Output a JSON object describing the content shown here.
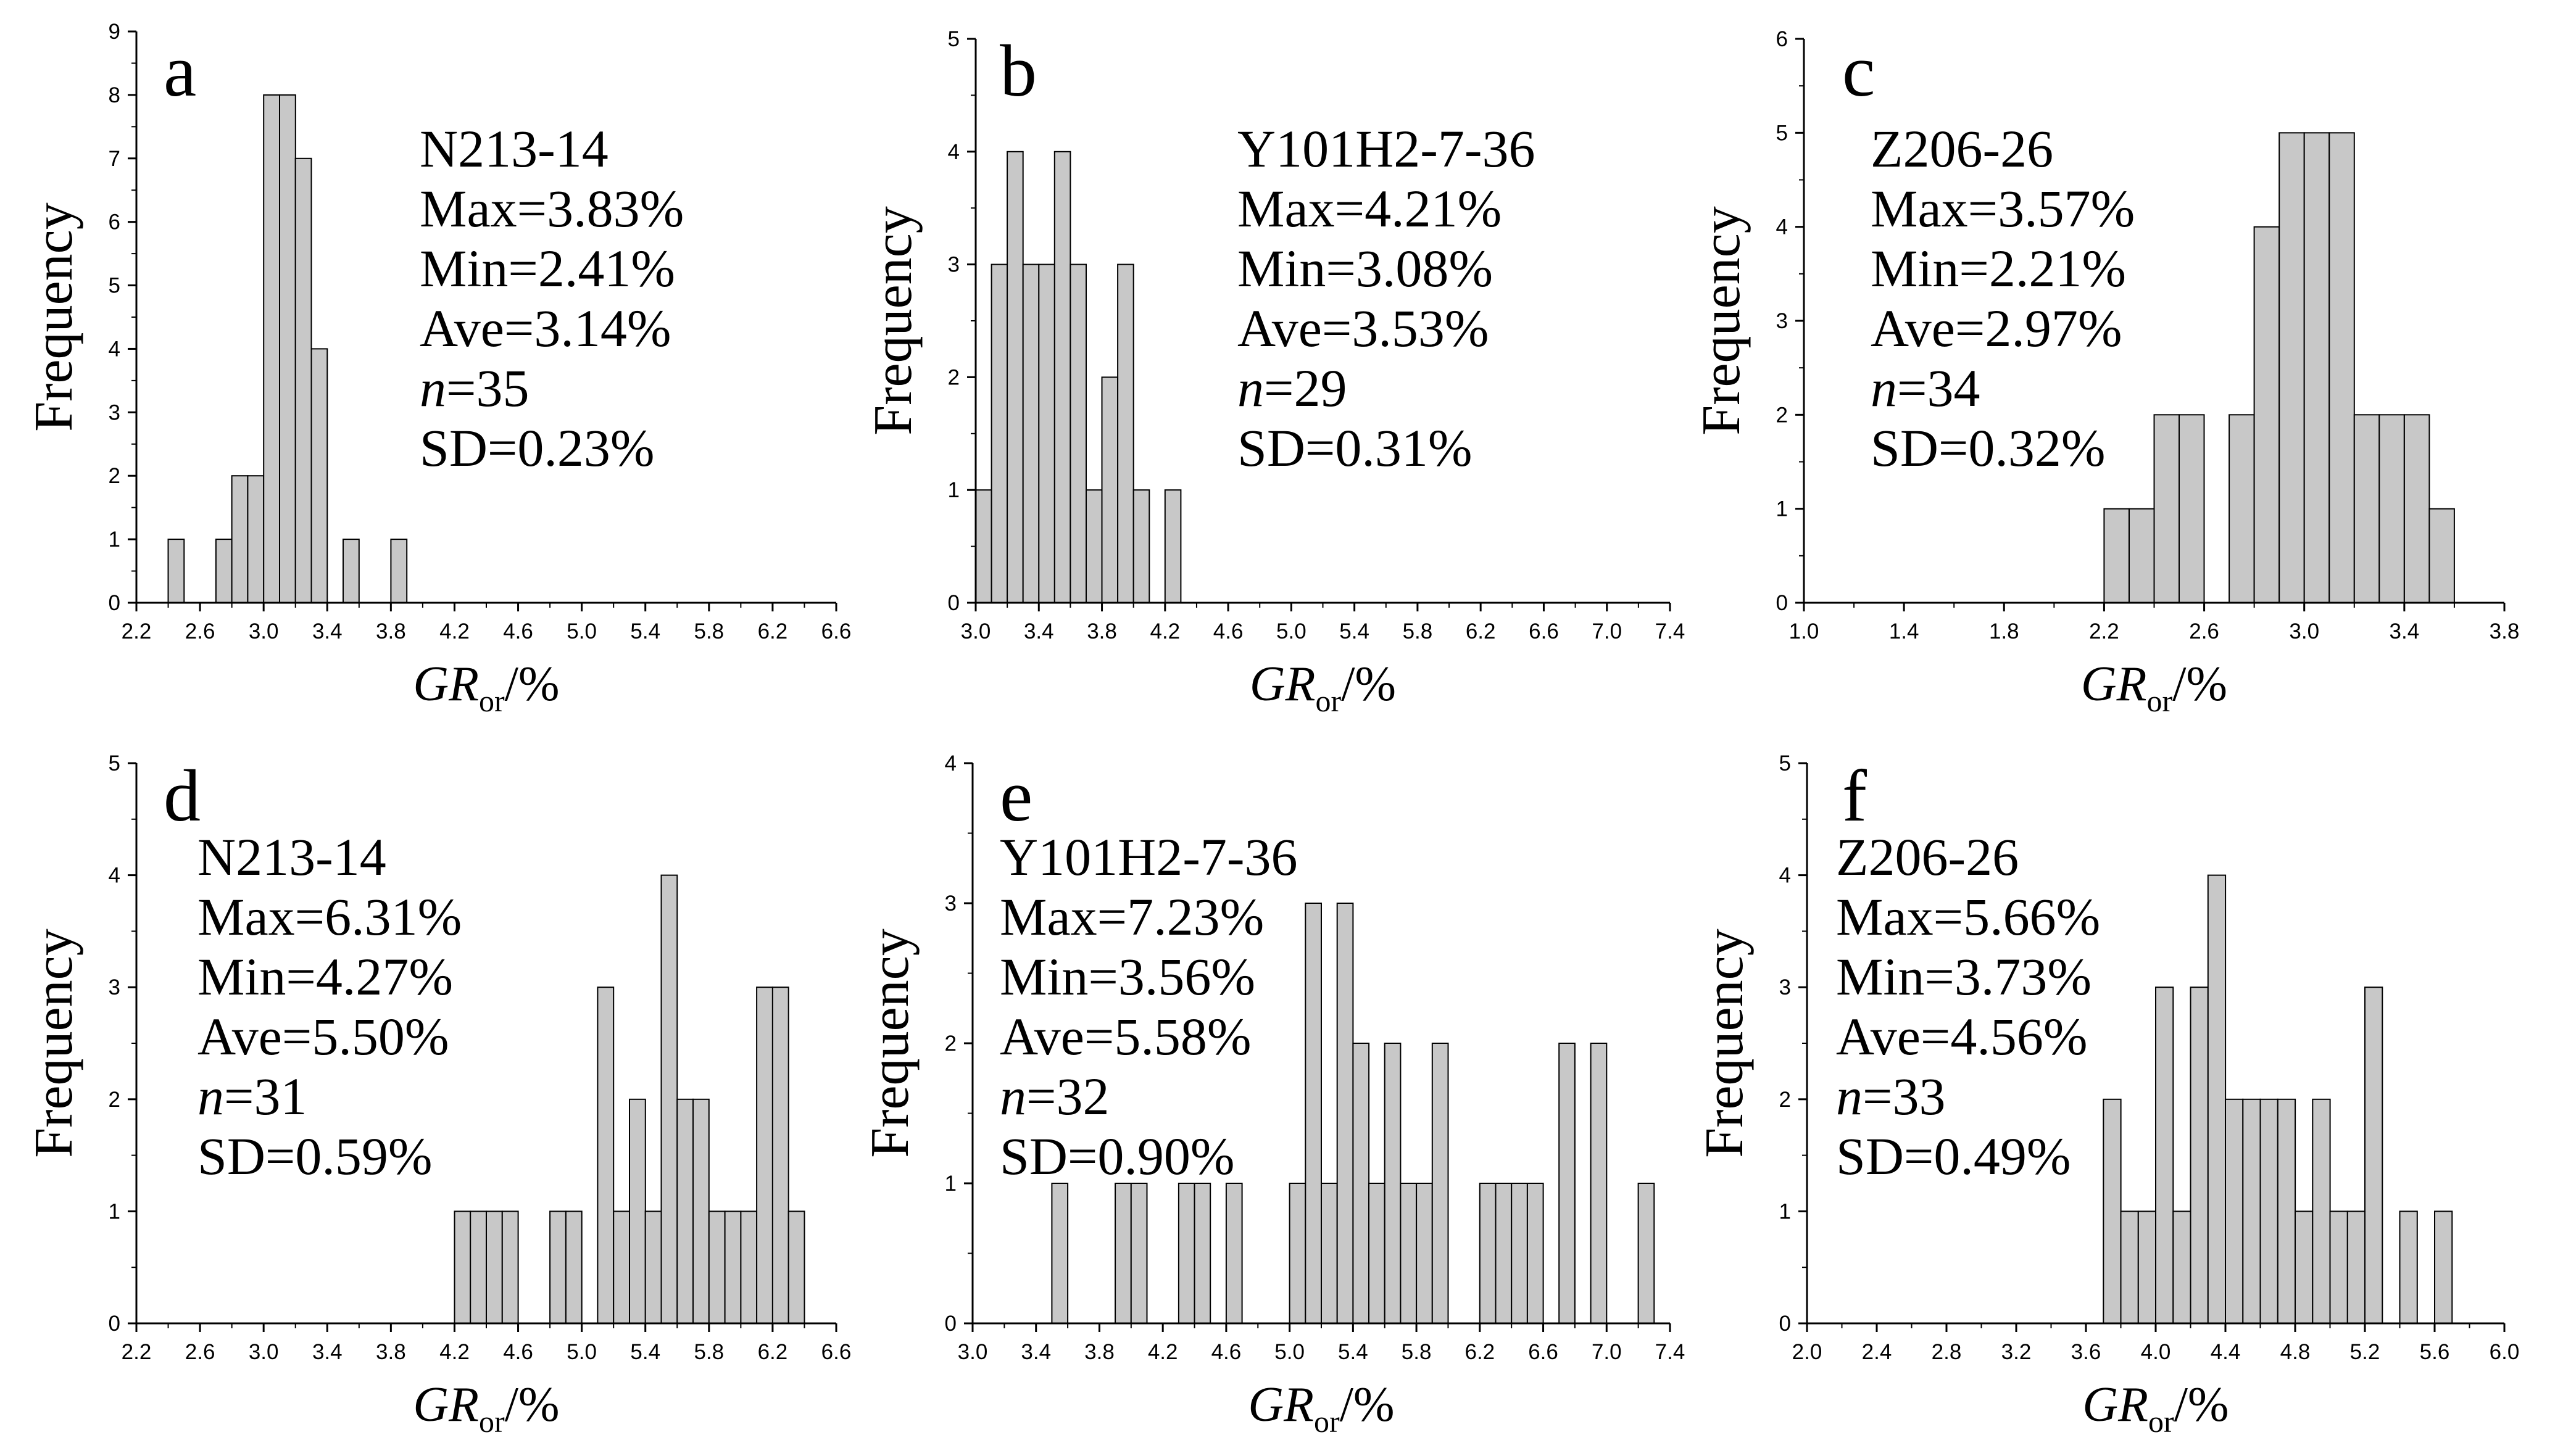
{
  "colors": {
    "bar_fill": "#c8c8c8",
    "bar_stroke": "#000000",
    "axis": "#000000",
    "background": "#ffffff"
  },
  "chart_data": [
    {
      "type": "bar",
      "panel": "a",
      "ylabel": "Frequency",
      "xlabel_main": "GR",
      "xlabel_sub": "or",
      "xlabel_unit": "/%",
      "bin_width": 0.1,
      "xlim": [
        2.2,
        6.6
      ],
      "ylim": [
        0,
        9
      ],
      "xticks": [
        "2.2",
        "2.6",
        "3.0",
        "3.4",
        "3.8",
        "4.2",
        "4.6",
        "5.0",
        "5.4",
        "5.8",
        "6.2",
        "6.6"
      ],
      "yticks": [
        "0",
        "1",
        "2",
        "3",
        "4",
        "5",
        "6",
        "7",
        "8",
        "9"
      ],
      "bins": [
        {
          "x": 2.4,
          "count": 1
        },
        {
          "x": 2.7,
          "count": 1
        },
        {
          "x": 2.8,
          "count": 2
        },
        {
          "x": 2.9,
          "count": 2
        },
        {
          "x": 3.0,
          "count": 8
        },
        {
          "x": 3.1,
          "count": 8
        },
        {
          "x": 3.2,
          "count": 7
        },
        {
          "x": 3.3,
          "count": 4
        },
        {
          "x": 3.5,
          "count": 1
        },
        {
          "x": 3.8,
          "count": 1
        }
      ],
      "stats": {
        "sample": "N213-14",
        "max": "Max=3.83%",
        "min": "Min=2.41%",
        "ave": "Ave=3.14%",
        "n_prefix": "n",
        "n_value": "=35",
        "sd": "SD=0.23%"
      },
      "legend_position": "upper-middle"
    },
    {
      "type": "bar",
      "panel": "b",
      "ylabel": "Frequency",
      "xlabel_main": "GR",
      "xlabel_sub": "or",
      "xlabel_unit": "/%",
      "bin_width": 0.1,
      "xlim": [
        3.0,
        7.4
      ],
      "ylim": [
        0,
        5
      ],
      "xticks": [
        "3.0",
        "3.4",
        "3.8",
        "4.2",
        "4.6",
        "5.0",
        "5.4",
        "5.8",
        "6.2",
        "6.6",
        "7.0",
        "7.4"
      ],
      "yticks": [
        "0",
        "1",
        "2",
        "3",
        "4",
        "5"
      ],
      "bins": [
        {
          "x": 3.0,
          "count": 1
        },
        {
          "x": 3.1,
          "count": 3
        },
        {
          "x": 3.2,
          "count": 4
        },
        {
          "x": 3.3,
          "count": 3
        },
        {
          "x": 3.4,
          "count": 3
        },
        {
          "x": 3.5,
          "count": 4
        },
        {
          "x": 3.6,
          "count": 3
        },
        {
          "x": 3.7,
          "count": 1
        },
        {
          "x": 3.8,
          "count": 2
        },
        {
          "x": 3.9,
          "count": 3
        },
        {
          "x": 4.0,
          "count": 1
        },
        {
          "x": 4.2,
          "count": 1
        }
      ],
      "stats": {
        "sample": "Y101H2-7-36",
        "max": "Max=4.21%",
        "min": "Min=3.08%",
        "ave": "Ave=3.53%",
        "n_prefix": "n",
        "n_value": "=29",
        "sd": "SD=0.31%"
      },
      "legend_position": "upper-middle"
    },
    {
      "type": "bar",
      "panel": "c",
      "ylabel": "Frequency",
      "xlabel_main": "GR",
      "xlabel_sub": "or",
      "xlabel_unit": "/%",
      "bin_width": 0.1,
      "xlim": [
        1.0,
        3.8
      ],
      "ylim": [
        0,
        6
      ],
      "xticks": [
        "1.0",
        "1.4",
        "1.8",
        "2.2",
        "2.6",
        "3.0",
        "3.4",
        "3.8"
      ],
      "yticks": [
        "0",
        "1",
        "2",
        "3",
        "4",
        "5",
        "6"
      ],
      "bins": [
        {
          "x": 2.2,
          "count": 1
        },
        {
          "x": 2.3,
          "count": 1
        },
        {
          "x": 2.4,
          "count": 2
        },
        {
          "x": 2.5,
          "count": 2
        },
        {
          "x": 2.7,
          "count": 2
        },
        {
          "x": 2.8,
          "count": 4
        },
        {
          "x": 2.9,
          "count": 5
        },
        {
          "x": 3.0,
          "count": 5
        },
        {
          "x": 3.1,
          "count": 5
        },
        {
          "x": 3.2,
          "count": 2
        },
        {
          "x": 3.3,
          "count": 2
        },
        {
          "x": 3.4,
          "count": 2
        },
        {
          "x": 3.5,
          "count": 1
        }
      ],
      "stats": {
        "sample": "Z206-26",
        "max": "Max=3.57%",
        "min": "Min=2.21%",
        "ave": "Ave=2.97%",
        "n_prefix": "n",
        "n_value": "=34",
        "sd": "SD=0.32%"
      },
      "legend_position": "upper-left"
    },
    {
      "type": "bar",
      "panel": "d",
      "ylabel": "Frequency",
      "xlabel_main": "GR",
      "xlabel_sub": "or",
      "xlabel_unit": "/%",
      "bin_width": 0.1,
      "xlim": [
        2.2,
        6.6
      ],
      "ylim": [
        0,
        5
      ],
      "xticks": [
        "2.2",
        "2.6",
        "3.0",
        "3.4",
        "3.8",
        "4.2",
        "4.6",
        "5.0",
        "5.4",
        "5.8",
        "6.2",
        "6.6"
      ],
      "yticks": [
        "0",
        "1",
        "2",
        "3",
        "4",
        "5"
      ],
      "bins": [
        {
          "x": 4.2,
          "count": 1
        },
        {
          "x": 4.3,
          "count": 1
        },
        {
          "x": 4.4,
          "count": 1
        },
        {
          "x": 4.5,
          "count": 1
        },
        {
          "x": 4.8,
          "count": 1
        },
        {
          "x": 4.9,
          "count": 1
        },
        {
          "x": 5.1,
          "count": 3
        },
        {
          "x": 5.2,
          "count": 1
        },
        {
          "x": 5.3,
          "count": 2
        },
        {
          "x": 5.4,
          "count": 1
        },
        {
          "x": 5.5,
          "count": 4
        },
        {
          "x": 5.6,
          "count": 2
        },
        {
          "x": 5.7,
          "count": 2
        },
        {
          "x": 5.8,
          "count": 1
        },
        {
          "x": 5.9,
          "count": 1
        },
        {
          "x": 6.0,
          "count": 1
        },
        {
          "x": 6.1,
          "count": 3
        },
        {
          "x": 6.2,
          "count": 3
        },
        {
          "x": 6.3,
          "count": 1
        }
      ],
      "stats": {
        "sample": "N213-14",
        "max": "Max=6.31%",
        "min": "Min=4.27%",
        "ave": "Ave=5.50%",
        "n_prefix": "n",
        "n_value": "=31",
        "sd": "SD=0.59%"
      },
      "legend_position": "upper-left"
    },
    {
      "type": "bar",
      "panel": "e",
      "ylabel": "Frequency",
      "xlabel_main": "GR",
      "xlabel_sub": "or",
      "xlabel_unit": "/%",
      "bin_width": 0.1,
      "xlim": [
        3.0,
        7.4
      ],
      "ylim": [
        0,
        4
      ],
      "xticks": [
        "3.0",
        "3.4",
        "3.8",
        "4.2",
        "4.6",
        "5.0",
        "5.4",
        "5.8",
        "6.2",
        "6.6",
        "7.0",
        "7.4"
      ],
      "yticks": [
        "0",
        "1",
        "2",
        "3",
        "4"
      ],
      "bins": [
        {
          "x": 3.5,
          "count": 1
        },
        {
          "x": 3.9,
          "count": 1
        },
        {
          "x": 4.0,
          "count": 1
        },
        {
          "x": 4.3,
          "count": 1
        },
        {
          "x": 4.4,
          "count": 1
        },
        {
          "x": 4.6,
          "count": 1
        },
        {
          "x": 5.0,
          "count": 1
        },
        {
          "x": 5.1,
          "count": 3
        },
        {
          "x": 5.2,
          "count": 1
        },
        {
          "x": 5.3,
          "count": 3
        },
        {
          "x": 5.4,
          "count": 2
        },
        {
          "x": 5.5,
          "count": 1
        },
        {
          "x": 5.6,
          "count": 2
        },
        {
          "x": 5.7,
          "count": 1
        },
        {
          "x": 5.8,
          "count": 1
        },
        {
          "x": 5.9,
          "count": 2
        },
        {
          "x": 6.2,
          "count": 1
        },
        {
          "x": 6.3,
          "count": 1
        },
        {
          "x": 6.4,
          "count": 1
        },
        {
          "x": 6.5,
          "count": 1
        },
        {
          "x": 6.7,
          "count": 2
        },
        {
          "x": 6.9,
          "count": 2
        },
        {
          "x": 7.2,
          "count": 1
        }
      ],
      "stats": {
        "sample": "Y101H2-7-36",
        "max": "Max=7.23%",
        "min": "Min=3.56%",
        "ave": "Ave=5.58%",
        "n_prefix": "n",
        "n_value": "=32",
        "sd": "SD=0.90%"
      },
      "legend_position": "upper-left"
    },
    {
      "type": "bar",
      "panel": "f",
      "ylabel": "Frequency",
      "xlabel_main": "GR",
      "xlabel_sub": "or",
      "xlabel_unit": "/%",
      "bin_width": 0.1,
      "xlim": [
        2.0,
        6.0
      ],
      "ylim": [
        0,
        5
      ],
      "xticks": [
        "2.0",
        "2.4",
        "2.8",
        "3.2",
        "3.6",
        "4.0",
        "4.4",
        "4.8",
        "5.2",
        "5.6",
        "6.0"
      ],
      "yticks": [
        "0",
        "1",
        "2",
        "3",
        "4",
        "5"
      ],
      "bins": [
        {
          "x": 3.7,
          "count": 2
        },
        {
          "x": 3.8,
          "count": 1
        },
        {
          "x": 3.9,
          "count": 1
        },
        {
          "x": 4.0,
          "count": 3
        },
        {
          "x": 4.1,
          "count": 1
        },
        {
          "x": 4.2,
          "count": 3
        },
        {
          "x": 4.3,
          "count": 4
        },
        {
          "x": 4.4,
          "count": 2
        },
        {
          "x": 4.5,
          "count": 2
        },
        {
          "x": 4.6,
          "count": 2
        },
        {
          "x": 4.7,
          "count": 2
        },
        {
          "x": 4.8,
          "count": 1
        },
        {
          "x": 4.9,
          "count": 2
        },
        {
          "x": 5.0,
          "count": 1
        },
        {
          "x": 5.1,
          "count": 1
        },
        {
          "x": 5.2,
          "count": 3
        },
        {
          "x": 5.4,
          "count": 1
        },
        {
          "x": 5.6,
          "count": 1
        }
      ],
      "stats": {
        "sample": "Z206-26",
        "max": "Max=5.66%",
        "min": "Min=3.73%",
        "ave": "Ave=4.56%",
        "n_prefix": "n",
        "n_value": "=33",
        "sd": "SD=0.49%"
      },
      "legend_position": "upper-left"
    }
  ]
}
